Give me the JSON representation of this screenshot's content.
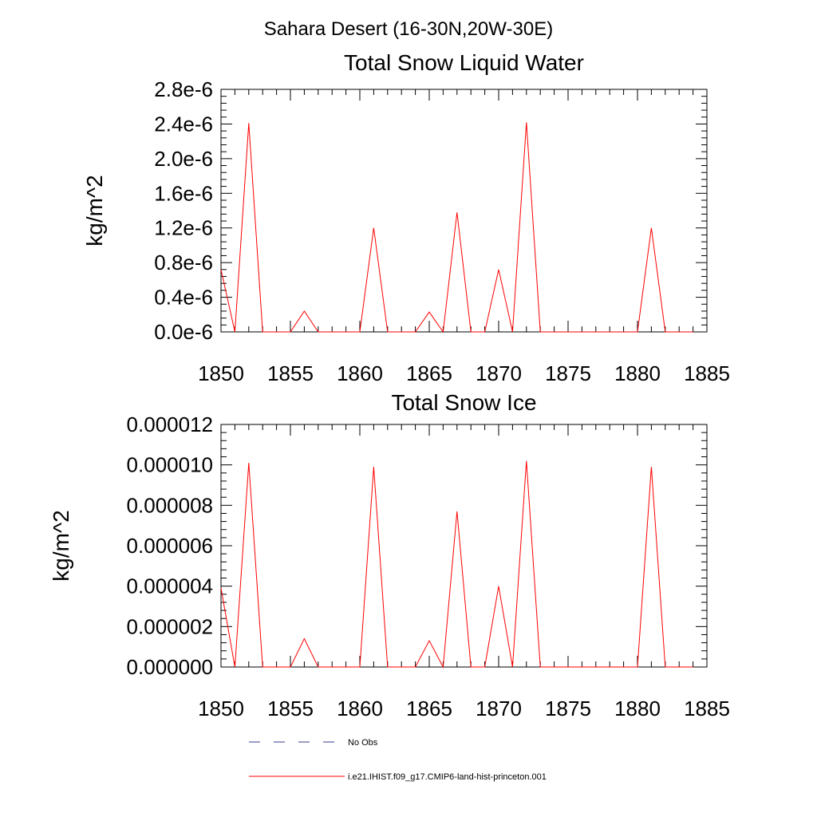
{
  "page_title": "Sahara Desert (16-30N,20W-30E)",
  "legend": {
    "items": [
      {
        "label": "No Obs",
        "color": "#3a3a8c",
        "style": "dashed"
      },
      {
        "label": "i.e21.IHIST.f09_g17.CMIP6-land-hist-princeton.001",
        "color": "#ff0000",
        "style": "solid"
      }
    ]
  },
  "chart_data": [
    {
      "type": "line",
      "title": "Total Snow Liquid Water",
      "ylabel": "kg/m^2",
      "xlim": [
        1850,
        1885
      ],
      "ylim": [
        0,
        2.8e-06
      ],
      "xticks": [
        "1850",
        "1855",
        "1860",
        "1865",
        "1870",
        "1875",
        "1880",
        "1885"
      ],
      "yticks": [
        "0.0e-6",
        "0.4e-6",
        "0.8e-6",
        "1.2e-6",
        "1.6e-6",
        "2.0e-6",
        "2.4e-6",
        "2.8e-6"
      ],
      "x": [
        1850,
        1851,
        1852,
        1853,
        1854,
        1855,
        1856,
        1857,
        1858,
        1859,
        1860,
        1861,
        1862,
        1863,
        1864,
        1865,
        1866,
        1867,
        1868,
        1869,
        1870,
        1871,
        1872,
        1873,
        1874,
        1875,
        1876,
        1877,
        1878,
        1879,
        1880,
        1881,
        1882,
        1883,
        1884
      ],
      "series": [
        {
          "color": "#ff0000",
          "values": [
            7.2e-07,
            0,
            2.41e-06,
            0,
            0,
            0,
            2.4e-07,
            0,
            0,
            0,
            0,
            1.2e-06,
            0,
            0,
            0,
            2.3e-07,
            0,
            1.38e-06,
            0,
            0,
            7.2e-07,
            0,
            2.42e-06,
            0,
            0,
            0,
            0,
            0,
            0,
            0,
            0,
            1.2e-06,
            0,
            0,
            0
          ]
        }
      ]
    },
    {
      "type": "line",
      "title": "Total Snow Ice",
      "ylabel": "kg/m^2",
      "xlim": [
        1850,
        1885
      ],
      "ylim": [
        0,
        1.2e-05
      ],
      "xticks": [
        "1850",
        "1855",
        "1860",
        "1865",
        "1870",
        "1875",
        "1880",
        "1885"
      ],
      "yticks": [
        "0.000000",
        "0.000002",
        "0.000004",
        "0.000006",
        "0.000008",
        "0.000010",
        "0.000012"
      ],
      "x": [
        1850,
        1851,
        1852,
        1853,
        1854,
        1855,
        1856,
        1857,
        1858,
        1859,
        1860,
        1861,
        1862,
        1863,
        1864,
        1865,
        1866,
        1867,
        1868,
        1869,
        1870,
        1871,
        1872,
        1873,
        1874,
        1875,
        1876,
        1877,
        1878,
        1879,
        1880,
        1881,
        1882,
        1883,
        1884
      ],
      "series": [
        {
          "color": "#ff0000",
          "values": [
            3.9e-06,
            0,
            1.01e-05,
            0,
            0,
            0,
            1.4e-06,
            0,
            0,
            0,
            0,
            9.9e-06,
            0,
            0,
            0,
            1.3e-06,
            0,
            7.7e-06,
            0,
            0,
            4e-06,
            0,
            1.02e-05,
            0,
            0,
            0,
            0,
            0,
            0,
            0,
            0,
            9.9e-06,
            0,
            0,
            0
          ]
        }
      ]
    }
  ]
}
